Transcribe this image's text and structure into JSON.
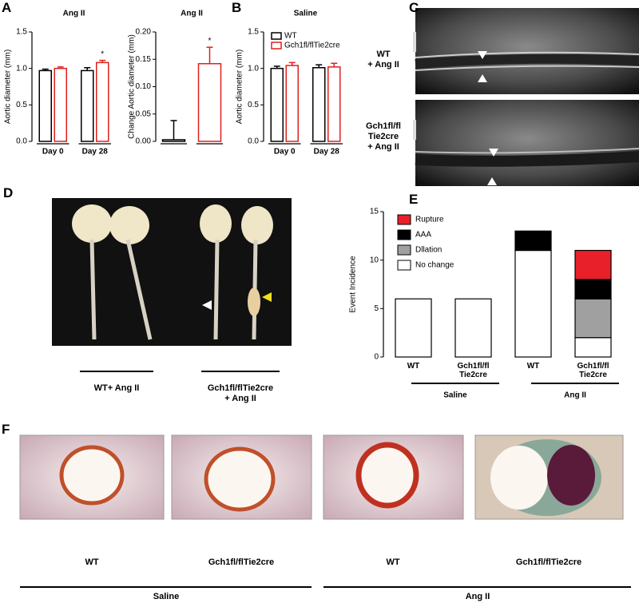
{
  "chart_data": [
    {
      "type": "bar",
      "title": "Ang II",
      "y_label": "Aortic diameter (mm)",
      "categories": [
        "Day 0",
        "Day 28"
      ],
      "series": [
        {
          "name": "WT",
          "color": "#000000",
          "values": [
            0.97,
            0.97
          ],
          "errors": [
            0.02,
            0.04
          ],
          "significance": [
            null,
            null
          ]
        },
        {
          "name": "Gch1fl/flTie2cre",
          "color": "#e0201c",
          "values": [
            1.0,
            1.08
          ],
          "errors": [
            0.02,
            0.03
          ],
          "significance": [
            null,
            "*"
          ]
        }
      ],
      "ylim": [
        0,
        1.5
      ],
      "yticks": [
        {
          "value": 0,
          "label": "0.0"
        },
        {
          "value": 0.5,
          "label": "0.5"
        },
        {
          "value": 1,
          "label": "1.0"
        },
        {
          "value": 1.5,
          "label": "1.5"
        }
      ]
    },
    {
      "type": "bar",
      "title": "Ang II",
      "y_label": "Change Aortic diameter (mm)",
      "categories": [
        null,
        null
      ],
      "series": [
        {
          "colors": [
            "#000000",
            "#e0201c"
          ],
          "values": [
            0.003,
            0.142
          ],
          "errors": [
            0.035,
            0.03
          ],
          "significance": [
            null,
            "*"
          ]
        }
      ],
      "ylim": [
        0,
        0.2
      ],
      "yticks": [
        {
          "value": 0,
          "label": "0.00"
        },
        {
          "value": 0.05,
          "label": "0.05"
        },
        {
          "value": 0.1,
          "label": "0.10"
        },
        {
          "value": 0.15,
          "label": "0.15"
        },
        {
          "value": 0.2,
          "label": "0.20"
        }
      ]
    },
    {
      "type": "bar",
      "title": "Saline",
      "y_label": "Aortic diameter (mm)",
      "categories": [
        "Day 0",
        "Day 28"
      ],
      "series": [
        {
          "name": "WT",
          "color": "#000000",
          "values": [
            1.0,
            1.01
          ],
          "errors": [
            0.03,
            0.04
          ],
          "significance": [
            null,
            null
          ]
        },
        {
          "name": "Gch1fl/flTie2cre",
          "color": "#e0201c",
          "values": [
            1.04,
            1.02
          ],
          "errors": [
            0.04,
            0.05
          ],
          "significance": [
            null,
            null
          ]
        }
      ],
      "legend": "upper left",
      "ylim": [
        0,
        1.5
      ],
      "yticks": [
        {
          "value": 0,
          "label": "0.0"
        },
        {
          "value": 0.5,
          "label": "0.5"
        },
        {
          "value": 1,
          "label": "1.0"
        },
        {
          "value": 1.5,
          "label": "1.5"
        }
      ]
    },
    {
      "type": "stacked_bar",
      "y_label": "Event Incidence",
      "categories": [
        "WT",
        "Gch1fl/fl\nTie2cre",
        "WT",
        "Gch1fl/fl\nTie2cre"
      ],
      "group_labels": [
        "Saline",
        "Ang II"
      ],
      "series": [
        {
          "name": "No change",
          "color": "#ffffff",
          "values": [
            6,
            6,
            11,
            2
          ]
        },
        {
          "name": "Dllation",
          "color": "#a0a0a0",
          "values": [
            0,
            0,
            0,
            4
          ]
        },
        {
          "name": "AAA",
          "color": "#000000",
          "values": [
            0,
            0,
            2,
            2
          ]
        },
        {
          "name": "Rupture",
          "color": "#e8202a",
          "values": [
            0,
            0,
            0,
            3
          ]
        }
      ],
      "legend": "upper left",
      "ylim": [
        0,
        15
      ],
      "yticks": [
        0,
        5,
        10,
        15
      ]
    }
  ],
  "panel_letters": [
    "A",
    "B",
    "C",
    "D",
    "E",
    "F"
  ],
  "panel_c": {
    "labels": [
      "WT\n+ Ang II",
      "Gch1fl/fl\nTie2cre\n+ Ang II"
    ]
  },
  "panel_d": {
    "labels": [
      "WT+ Ang II",
      "Gch1fl/flTie2cre\n+ Ang II"
    ]
  },
  "panel_f": {
    "labels": [
      "WT",
      "Gch1fl/flTie2cre",
      "WT",
      "Gch1fl/flTie2cre"
    ],
    "groups": [
      "Saline",
      "Ang II"
    ]
  }
}
